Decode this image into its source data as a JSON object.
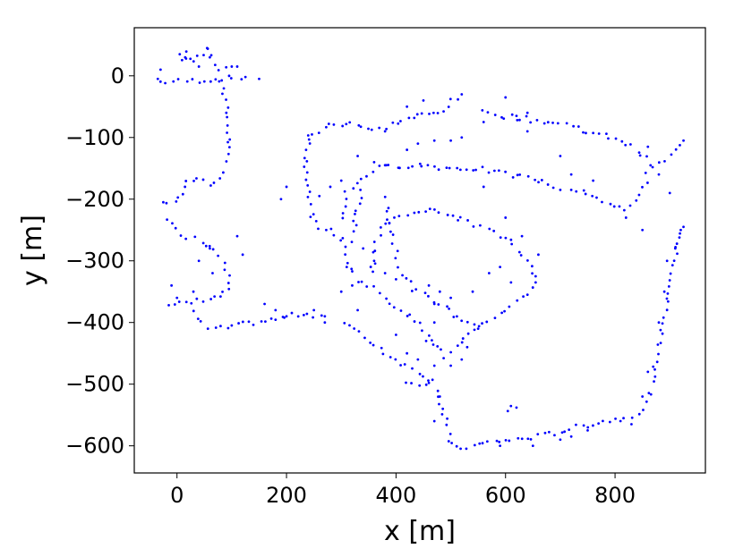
{
  "chart_data": {
    "type": "scatter",
    "xlabel": "x [m]",
    "ylabel": "y [m]",
    "xlim": [
      -78,
      965
    ],
    "ylim": [
      -644,
      78
    ],
    "xticks": [
      0,
      200,
      400,
      600,
      800
    ],
    "yticks": [
      0,
      -100,
      -200,
      -300,
      -400,
      -500,
      -600
    ],
    "xtick_labels": [
      "0",
      "200",
      "400",
      "600",
      "800"
    ],
    "ytick_labels": [
      "0",
      "−100",
      "−200",
      "−300",
      "−400",
      "−500",
      "−600"
    ],
    "grid": false,
    "marker_color": "#0000ff",
    "polylines": [
      [
        [
          -30,
          -10
        ],
        [
          30,
          -8
        ],
        [
          80,
          -5
        ],
        [
          125,
          -2
        ]
      ],
      [
        [
          10,
          25
        ],
        [
          20,
          35
        ],
        [
          30,
          25
        ],
        [
          60,
          40
        ],
        [
          75,
          10
        ],
        [
          100,
          15
        ]
      ],
      [
        [
          85,
          -5
        ],
        [
          88,
          -40
        ],
        [
          92,
          -70
        ],
        [
          95,
          -110
        ],
        [
          88,
          -140
        ],
        [
          80,
          -165
        ],
        [
          60,
          -180
        ],
        [
          40,
          -165
        ],
        [
          20,
          -175
        ],
        [
          5,
          -200
        ],
        [
          -25,
          -205
        ]
      ],
      [
        [
          -20,
          -235
        ],
        [
          0,
          -250
        ],
        [
          20,
          -260
        ],
        [
          45,
          -268
        ],
        [
          70,
          -280
        ],
        [
          85,
          -300
        ],
        [
          95,
          -320
        ],
        [
          95,
          -345
        ],
        [
          80,
          -360
        ],
        [
          50,
          -365
        ],
        [
          20,
          -365
        ],
        [
          -15,
          -372
        ]
      ],
      [
        [
          30,
          -385
        ],
        [
          55,
          -410
        ],
        [
          80,
          -410
        ],
        [
          110,
          -405
        ],
        [
          140,
          -400
        ],
        [
          180,
          -395
        ],
        [
          230,
          -385
        ],
        [
          270,
          -390
        ]
      ],
      [
        [
          310,
          -400
        ],
        [
          350,
          -430
        ],
        [
          400,
          -460
        ],
        [
          440,
          -480
        ],
        [
          470,
          -495
        ],
        [
          480,
          -530
        ],
        [
          490,
          -560
        ],
        [
          500,
          -590
        ],
        [
          510,
          -605
        ],
        [
          540,
          -600
        ],
        [
          580,
          -593
        ],
        [
          620,
          -590
        ],
        [
          660,
          -585
        ],
        [
          700,
          -577
        ],
        [
          740,
          -568
        ],
        [
          780,
          -560
        ],
        [
          820,
          -555
        ],
        [
          855,
          -540
        ],
        [
          868,
          -500
        ],
        [
          880,
          -440
        ],
        [
          895,
          -380
        ],
        [
          905,
          -320
        ],
        [
          915,
          -260
        ],
        [
          920,
          -250
        ]
      ],
      [
        [
          240,
          -100
        ],
        [
          280,
          -80
        ],
        [
          320,
          -75
        ],
        [
          360,
          -90
        ],
        [
          400,
          -75
        ],
        [
          440,
          -65
        ],
        [
          480,
          -60
        ],
        [
          520,
          -30
        ]
      ],
      [
        [
          560,
          -60
        ],
        [
          600,
          -65
        ],
        [
          640,
          -70
        ],
        [
          680,
          -75
        ],
        [
          720,
          -80
        ],
        [
          760,
          -95
        ],
        [
          800,
          -100
        ],
        [
          840,
          -120
        ],
        [
          870,
          -150
        ],
        [
          900,
          -130
        ],
        [
          925,
          -105
        ]
      ],
      [
        [
          860,
          -160
        ],
        [
          840,
          -200
        ],
        [
          820,
          -215
        ],
        [
          790,
          -205
        ],
        [
          760,
          -195
        ],
        [
          720,
          -185
        ]
      ],
      [
        [
          240,
          -100
        ],
        [
          235,
          -150
        ],
        [
          240,
          -200
        ],
        [
          250,
          -240
        ],
        [
          300,
          -260
        ],
        [
          310,
          -300
        ],
        [
          330,
          -330
        ],
        [
          360,
          -345
        ],
        [
          380,
          -360
        ],
        [
          420,
          -385
        ],
        [
          450,
          -410
        ],
        [
          475,
          -440
        ],
        [
          490,
          -455
        ],
        [
          510,
          -440
        ],
        [
          550,
          -410
        ],
        [
          590,
          -385
        ],
        [
          630,
          -360
        ],
        [
          655,
          -335
        ]
      ],
      [
        [
          300,
          -230
        ],
        [
          310,
          -190
        ],
        [
          335,
          -165
        ],
        [
          370,
          -150
        ],
        [
          410,
          -145
        ],
        [
          450,
          -145
        ],
        [
          500,
          -150
        ],
        [
          550,
          -150
        ],
        [
          600,
          -160
        ],
        [
          640,
          -165
        ],
        [
          680,
          -175
        ],
        [
          700,
          -185
        ]
      ],
      [
        [
          380,
          -200
        ],
        [
          390,
          -250
        ],
        [
          400,
          -285
        ],
        [
          410,
          -320
        ],
        [
          430,
          -345
        ],
        [
          460,
          -360
        ],
        [
          500,
          -380
        ],
        [
          520,
          -400
        ],
        [
          550,
          -410
        ]
      ],
      [
        [
          355,
          -320
        ],
        [
          360,
          -280
        ],
        [
          375,
          -250
        ],
        [
          400,
          -230
        ],
        [
          430,
          -218
        ],
        [
          470,
          -220
        ],
        [
          510,
          -230
        ],
        [
          545,
          -240
        ],
        [
          580,
          -255
        ],
        [
          615,
          -275
        ],
        [
          640,
          -300
        ],
        [
          655,
          -325
        ]
      ],
      [
        [
          320,
          -265
        ],
        [
          328,
          -225
        ],
        [
          335,
          -185
        ]
      ],
      [
        [
          420,
          -495
        ],
        [
          445,
          -505
        ],
        [
          460,
          -498
        ]
      ],
      [
        [
          600,
          -540
        ],
        [
          620,
          -538
        ]
      ]
    ],
    "scattered": [
      [
        -30,
        10
      ],
      [
        -35,
        -5
      ],
      [
        5,
        35
      ],
      [
        15,
        30
      ],
      [
        40,
        15
      ],
      [
        55,
        45
      ],
      [
        60,
        30
      ],
      [
        110,
        15
      ],
      [
        150,
        -5
      ],
      [
        110,
        -260
      ],
      [
        160,
        -370
      ],
      [
        180,
        -380
      ],
      [
        200,
        -390
      ],
      [
        300,
        -350
      ],
      [
        250,
        -380
      ],
      [
        380,
        -145
      ],
      [
        360,
        -140
      ],
      [
        270,
        -400
      ],
      [
        330,
        -380
      ],
      [
        400,
        -420
      ],
      [
        470,
        -470
      ],
      [
        480,
        -520
      ],
      [
        470,
        -560
      ],
      [
        590,
        -600
      ],
      [
        650,
        -600
      ],
      [
        700,
        -590
      ],
      [
        720,
        -585
      ],
      [
        750,
        -575
      ],
      [
        830,
        -565
      ],
      [
        850,
        -520
      ],
      [
        860,
        -480
      ],
      [
        880,
        -400
      ],
      [
        890,
        -350
      ],
      [
        895,
        -300
      ],
      [
        910,
        -280
      ],
      [
        925,
        -245
      ],
      [
        880,
        -160
      ],
      [
        900,
        -190
      ],
      [
        860,
        -115
      ],
      [
        820,
        -230
      ],
      [
        850,
        -250
      ],
      [
        760,
        -170
      ],
      [
        720,
        -160
      ],
      [
        700,
        -130
      ],
      [
        640,
        -90
      ],
      [
        620,
        -65
      ],
      [
        600,
        -35
      ],
      [
        560,
        -75
      ],
      [
        640,
        -60
      ],
      [
        450,
        -40
      ],
      [
        420,
        -50
      ],
      [
        380,
        -90
      ],
      [
        330,
        -130
      ],
      [
        300,
        -170
      ],
      [
        280,
        -180
      ],
      [
        260,
        -195
      ],
      [
        200,
        -180
      ],
      [
        190,
        -200
      ],
      [
        420,
        -120
      ],
      [
        440,
        -110
      ],
      [
        470,
        -105
      ],
      [
        500,
        -105
      ],
      [
        520,
        -100
      ],
      [
        560,
        -180
      ],
      [
        600,
        -230
      ],
      [
        630,
        -260
      ],
      [
        660,
        -290
      ],
      [
        590,
        -310
      ],
      [
        570,
        -320
      ],
      [
        610,
        -335
      ],
      [
        540,
        -350
      ],
      [
        500,
        -360
      ],
      [
        470,
        -400
      ],
      [
        455,
        -430
      ],
      [
        440,
        -460
      ],
      [
        420,
        -450
      ],
      [
        530,
        -440
      ],
      [
        520,
        -460
      ],
      [
        500,
        -470
      ],
      [
        400,
        -330
      ],
      [
        380,
        -320
      ],
      [
        360,
        -300
      ],
      [
        340,
        -280
      ],
      [
        310,
        -310
      ],
      [
        320,
        -340
      ],
      [
        460,
        -340
      ],
      [
        480,
        -350
      ],
      [
        470,
        -370
      ],
      [
        120,
        -290
      ],
      [
        60,
        -280
      ],
      [
        40,
        -300
      ],
      [
        65,
        -320
      ],
      [
        -10,
        -340
      ],
      [
        0,
        -360
      ],
      [
        30,
        -350
      ]
    ]
  }
}
